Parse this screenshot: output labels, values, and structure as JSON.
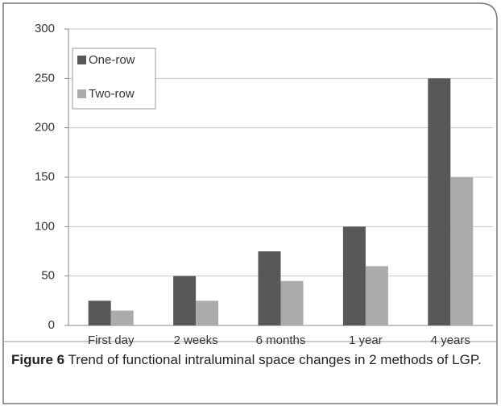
{
  "chart_data": {
    "type": "bar",
    "categories": [
      "First day",
      "2 weeks",
      "6 months",
      "1 year",
      "4 years"
    ],
    "series": [
      {
        "name": "One-row",
        "color": "#585858",
        "values": [
          25,
          50,
          75,
          100,
          250
        ]
      },
      {
        "name": "Two-row",
        "color": "#ababab",
        "values": [
          15,
          25,
          45,
          60,
          150
        ]
      }
    ],
    "ylim": [
      0,
      300
    ],
    "yticks": [
      0,
      50,
      100,
      150,
      200,
      250,
      300
    ],
    "grid": true,
    "legend": "upper left"
  },
  "caption": {
    "label": "Figure 6",
    "text": "Trend of functional intraluminal space changes in 2 methods of LGP."
  }
}
